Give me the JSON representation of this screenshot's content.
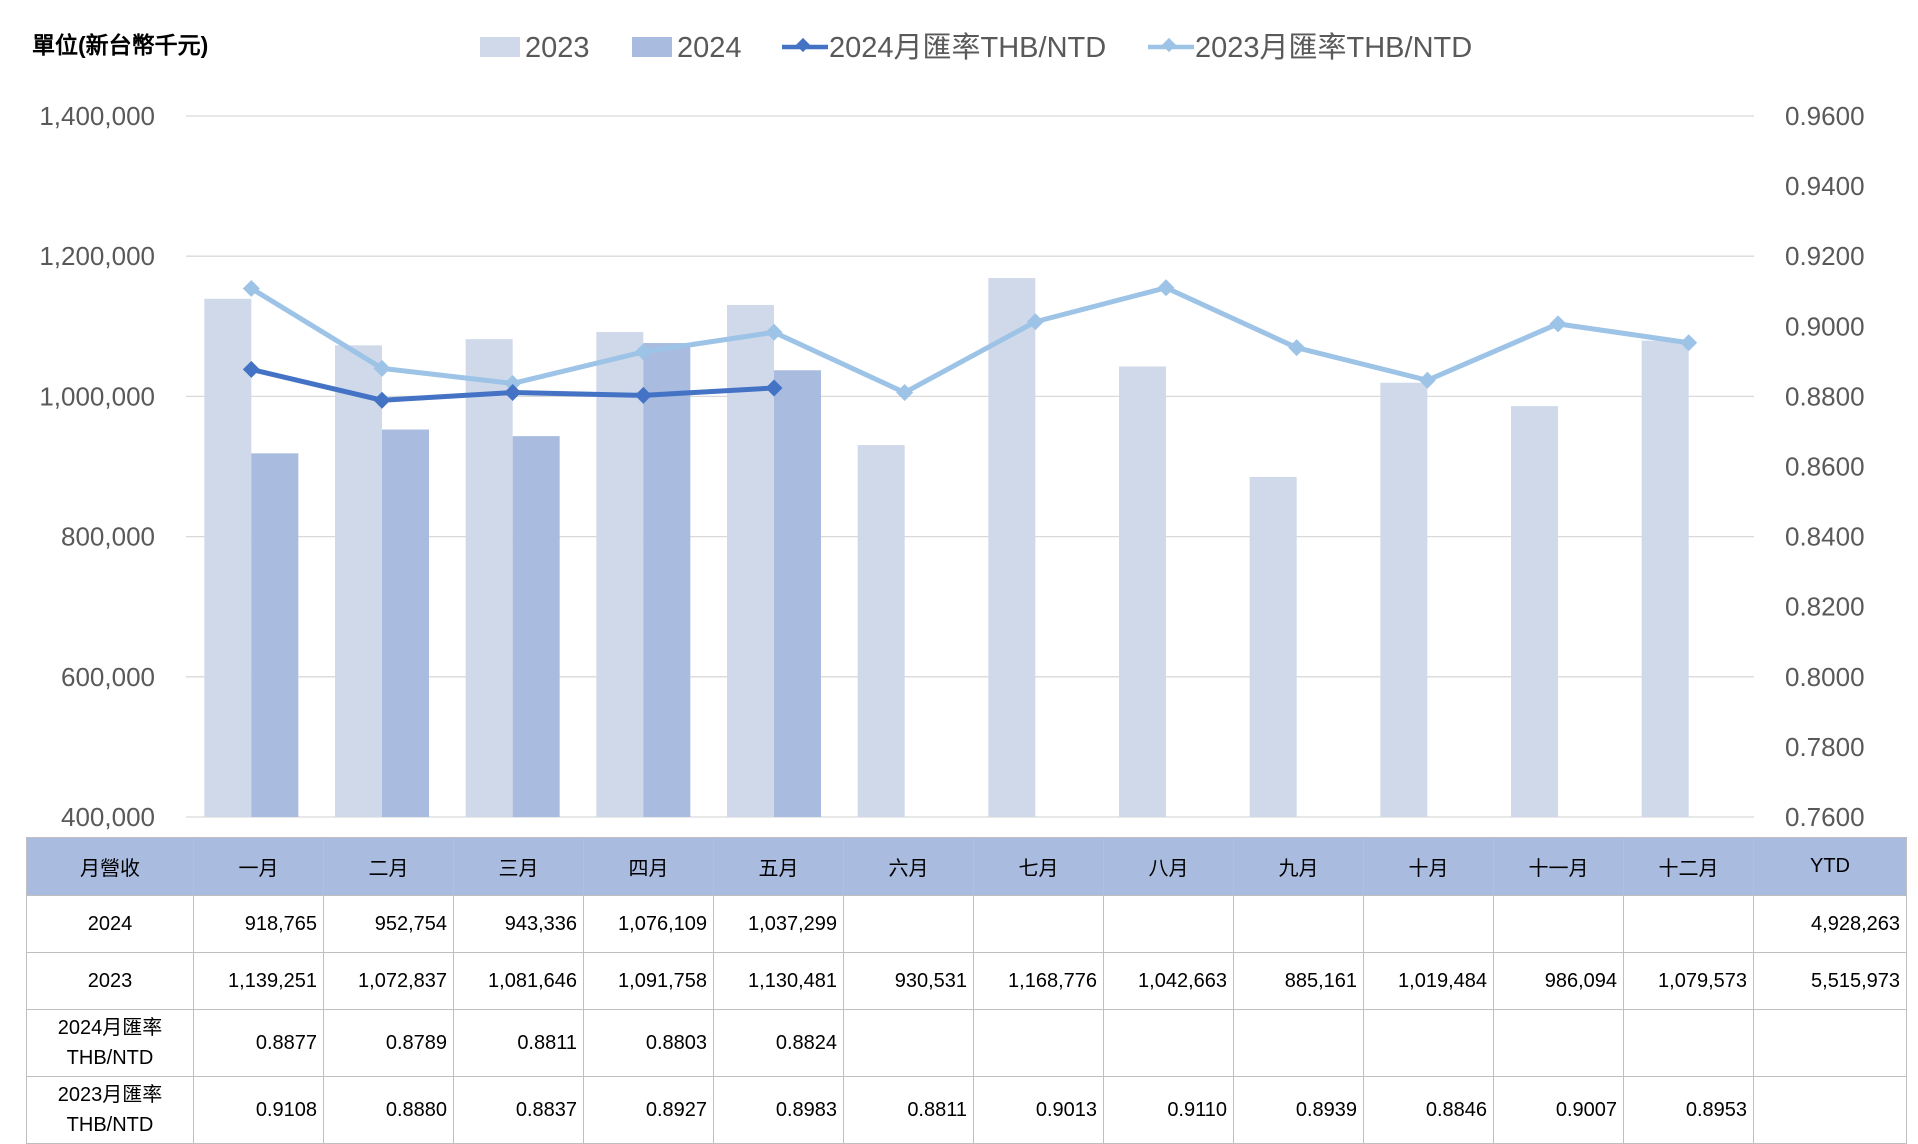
{
  "unit_label": "單位(新台幣千元)",
  "legend": {
    "bar_2023": "2023",
    "bar_2024": "2024",
    "line_2024": "2024月匯率THB/NTD",
    "line_2023": "2023月匯率THB/NTD"
  },
  "colors": {
    "bar_2023": "#cfd9ea",
    "bar_2024": "#a9bbdf",
    "line_2024": "#4472c4",
    "line_2023": "#9dc3e6",
    "table_header": "#a9bbdf"
  },
  "chart_data": {
    "type": "bar",
    "categories": [
      "一月",
      "二月",
      "三月",
      "四月",
      "五月",
      "六月",
      "七月",
      "八月",
      "九月",
      "十月",
      "十一月",
      "十二月"
    ],
    "series": [
      {
        "name": "2023",
        "type": "bar",
        "axis": "left",
        "values": [
          1139251,
          1072837,
          1081646,
          1091758,
          1130481,
          930531,
          1168776,
          1042663,
          885161,
          1019484,
          986094,
          1079573
        ]
      },
      {
        "name": "2024",
        "type": "bar",
        "axis": "left",
        "values": [
          918765,
          952754,
          943336,
          1076109,
          1037299,
          null,
          null,
          null,
          null,
          null,
          null,
          null
        ]
      },
      {
        "name": "2024月匯率THB/NTD",
        "type": "line",
        "axis": "right",
        "values": [
          0.8877,
          0.8789,
          0.8811,
          0.8803,
          0.8824,
          null,
          null,
          null,
          null,
          null,
          null,
          null
        ]
      },
      {
        "name": "2023月匯率THB/NTD",
        "type": "line",
        "axis": "right",
        "values": [
          0.9108,
          0.888,
          0.8837,
          0.8927,
          0.8983,
          0.8811,
          0.9013,
          0.911,
          0.8939,
          0.8846,
          0.9007,
          0.8953
        ]
      }
    ],
    "y_left": {
      "min": 400000,
      "max": 1400000,
      "tick_values": [
        400000,
        600000,
        800000,
        1000000,
        1200000,
        1400000
      ],
      "tick_labels": [
        "400,000",
        "600,000",
        "800,000",
        "1,000,000",
        "1,200,000",
        "1,400,000"
      ]
    },
    "y_right": {
      "min": 0.76,
      "max": 0.96,
      "tick_values": [
        0.76,
        0.78,
        0.8,
        0.82,
        0.84,
        0.86,
        0.88,
        0.9,
        0.92,
        0.94,
        0.96
      ],
      "tick_labels": [
        "0.7600",
        "0.7800",
        "0.8000",
        "0.8200",
        "0.8400",
        "0.8600",
        "0.8800",
        "0.9000",
        "0.9200",
        "0.9400",
        "0.9600"
      ]
    },
    "grid": true,
    "legend_position": "top"
  },
  "table": {
    "header_label": "月營收",
    "months": [
      "一月",
      "二月",
      "三月",
      "四月",
      "五月",
      "六月",
      "七月",
      "八月",
      "九月",
      "十月",
      "十一月",
      "十二月"
    ],
    "ytd_label": "YTD",
    "rows": [
      {
        "label": "2024",
        "cells": [
          "918,765",
          "952,754",
          "943,336",
          "1,076,109",
          "1,037,299",
          "",
          "",
          "",
          "",
          "",
          "",
          ""
        ],
        "ytd": "4,928,263"
      },
      {
        "label": "2023",
        "cells": [
          "1,139,251",
          "1,072,837",
          "1,081,646",
          "1,091,758",
          "1,130,481",
          "930,531",
          "1,168,776",
          "1,042,663",
          "885,161",
          "1,019,484",
          "986,094",
          "1,079,573"
        ],
        "ytd": "5,515,973"
      },
      {
        "label": "2024月匯率THB/NTD",
        "label_line1": "2024月匯率",
        "label_line2": "THB/NTD",
        "cells": [
          "0.8877",
          "0.8789",
          "0.8811",
          "0.8803",
          "0.8824",
          "",
          "",
          "",
          "",
          "",
          "",
          ""
        ],
        "ytd": ""
      },
      {
        "label": "2023月匯率THB/NTD",
        "label_line1": "2023月匯率",
        "label_line2": "THB/NTD",
        "cells": [
          "0.9108",
          "0.8880",
          "0.8837",
          "0.8927",
          "0.8983",
          "0.8811",
          "0.9013",
          "0.9110",
          "0.8939",
          "0.8846",
          "0.9007",
          "0.8953"
        ],
        "ytd": ""
      }
    ]
  }
}
